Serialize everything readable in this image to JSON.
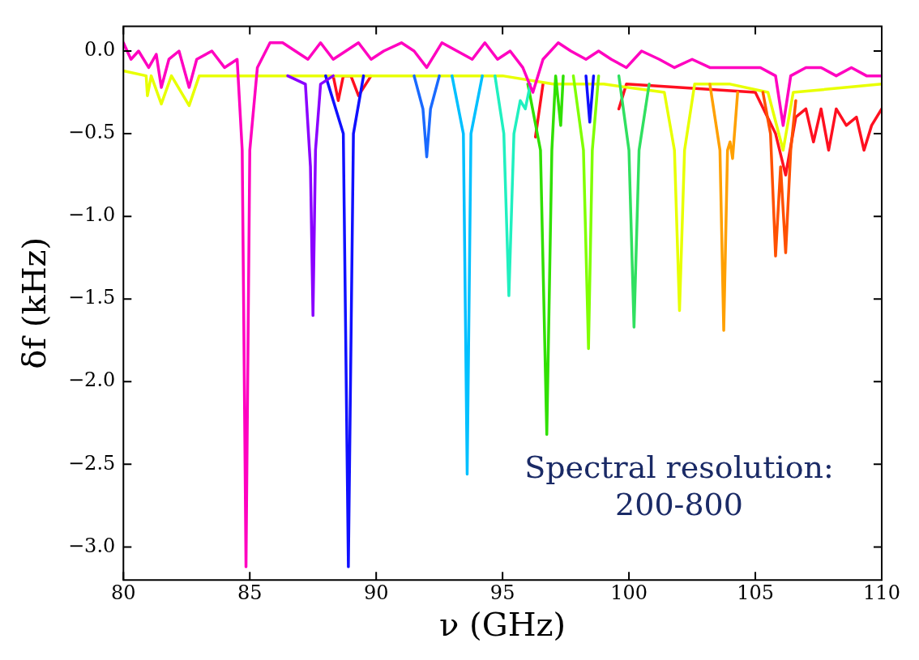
{
  "chart_data": {
    "type": "line",
    "xlabel": "ν (GHz)",
    "ylabel": "δf (kHz)",
    "xlim": [
      80,
      110
    ],
    "ylim": [
      -3.2,
      0.15
    ],
    "xticks": [
      80,
      85,
      90,
      95,
      100,
      105,
      110
    ],
    "yticks": [
      {
        "value": 0,
        "label": "0.0"
      },
      {
        "value": -0.5,
        "label": "−0.5"
      },
      {
        "value": -1,
        "label": "−1.0"
      },
      {
        "value": -1.5,
        "label": "−1.5"
      },
      {
        "value": -2,
        "label": "−2.0"
      },
      {
        "value": -2.5,
        "label": "−2.5"
      },
      {
        "value": -3,
        "label": "−3.0"
      }
    ],
    "grid": false,
    "legend": false,
    "marker": "none",
    "line_style": "solid",
    "annotations": [
      "Spectral resolution:\n200-800"
    ],
    "series": [
      {
        "color": "#ff1020",
        "x": [
          88.3,
          88.5,
          88.7,
          89.0,
          89.3,
          89.8,
          95.5,
          96.3,
          96.6,
          99.3,
          99.6,
          99.9,
          105,
          105.8,
          106.2,
          106.6,
          107,
          107.3,
          107.6,
          107.9,
          108.2,
          108.6,
          109.0,
          109.3,
          109.6,
          110
        ],
        "values": [
          -0.15,
          -0.3,
          -0.15,
          -0.15,
          -0.27,
          -0.15,
          null,
          -0.52,
          -0.2,
          null,
          -0.35,
          -0.2,
          -0.25,
          -0.5,
          -0.75,
          -0.4,
          -0.35,
          -0.55,
          -0.35,
          -0.6,
          -0.35,
          -0.45,
          -0.4,
          -0.6,
          -0.45,
          -0.35
        ]
      },
      {
        "color": "#e8ff00",
        "x": [
          80,
          80.9,
          80.95,
          81.1,
          81.5,
          81.9,
          82.6,
          83,
          84,
          85,
          90,
          95,
          97,
          99,
          101.4,
          101.8,
          102.0,
          102.2,
          102.6,
          104,
          105.5,
          106.1,
          106.5,
          110
        ],
        "values": [
          -0.12,
          -0.15,
          -0.27,
          -0.15,
          -0.32,
          -0.15,
          -0.33,
          -0.15,
          -0.15,
          -0.15,
          -0.15,
          -0.15,
          -0.2,
          -0.2,
          -0.25,
          -0.6,
          -1.57,
          -0.6,
          -0.2,
          -0.2,
          -0.25,
          -0.6,
          -0.25,
          -0.2
        ]
      },
      {
        "color": "#ff5000",
        "x": [
          105.3,
          105.6,
          105.8,
          106.0,
          106.2,
          106.4,
          106.6
        ],
        "values": [
          -0.25,
          -0.5,
          -1.24,
          -0.7,
          -1.22,
          -0.6,
          -0.3
        ]
      },
      {
        "color": "#ffa000",
        "x": [
          103.2,
          103.6,
          103.75,
          103.9,
          104.0,
          104.1,
          104.3
        ],
        "values": [
          -0.2,
          -0.6,
          -1.69,
          -0.6,
          -0.55,
          -0.65,
          -0.25
        ]
      },
      {
        "color": "#30e060",
        "x": [
          99.6,
          100.0,
          100.2,
          100.4,
          100.8
        ],
        "values": [
          -0.15,
          -0.6,
          -1.67,
          -0.6,
          -0.2
        ]
      },
      {
        "color": "#80ff00",
        "x": [
          97.8,
          98.2,
          98.4,
          98.55,
          98.8
        ],
        "values": [
          -0.15,
          -0.6,
          -1.8,
          -0.6,
          -0.15
        ]
      },
      {
        "color": "#30e000",
        "x": [
          96.0,
          96.5,
          96.75,
          96.95,
          97.1,
          97.3,
          97.4
        ],
        "values": [
          -0.2,
          -0.6,
          -2.32,
          -0.6,
          -0.15,
          -0.45,
          -0.15
        ]
      },
      {
        "color": "#20f0c0",
        "x": [
          94.7,
          95.05,
          95.25,
          95.45,
          95.7,
          95.9,
          96.1
        ],
        "values": [
          -0.15,
          -0.5,
          -1.48,
          -0.5,
          -0.3,
          -0.35,
          -0.2
        ]
      },
      {
        "color": "#00c0ff",
        "x": [
          93.0,
          93.45,
          93.6,
          93.75,
          94.2
        ],
        "values": [
          -0.15,
          -0.5,
          -2.56,
          -0.5,
          -0.15
        ]
      },
      {
        "color": "#1a6aff",
        "x": [
          91.5,
          91.85,
          92.0,
          92.15,
          92.5
        ],
        "values": [
          -0.15,
          -0.35,
          -0.64,
          -0.35,
          -0.15
        ]
      },
      {
        "color": "#1010ff",
        "x": [
          88.0,
          88.7,
          88.9,
          89.1,
          89.5,
          93,
          98.3,
          98.45,
          98.6
        ],
        "values": [
          -0.15,
          -0.5,
          -3.12,
          -0.5,
          -0.15,
          null,
          -0.15,
          -0.43,
          -0.15
        ]
      },
      {
        "color": "#8a00ff",
        "x": [
          86.5,
          87.2,
          87.4,
          87.5,
          87.6,
          87.8,
          88.3
        ],
        "values": [
          -0.15,
          -0.2,
          -0.7,
          -1.6,
          -0.6,
          -0.2,
          -0.15
        ]
      },
      {
        "color": "#ff00c0",
        "x": [
          80,
          80.3,
          80.6,
          81,
          81.3,
          81.5,
          81.8,
          82.2,
          82.6,
          82.9,
          83.5,
          84.0,
          84.5,
          84.7,
          84.85,
          85.0,
          85.3,
          85.8,
          86.3,
          86.8,
          87.3,
          87.8,
          88.3,
          88.8,
          89.3,
          89.8,
          90.3,
          91,
          91.5,
          92.0,
          92.6,
          93.2,
          93.8,
          94.3,
          94.8,
          95.3,
          95.8,
          96.2,
          96.6,
          97.2,
          97.7,
          98.3,
          98.8,
          99.3,
          99.9,
          100.5,
          101.2,
          101.8,
          102.5,
          103.2,
          103.8,
          104.5,
          105.2,
          105.8,
          106.1,
          106.4,
          107,
          107.6,
          108.2,
          108.8,
          109.4,
          110
        ],
        "values": [
          0.05,
          -0.05,
          0.0,
          -0.1,
          -0.02,
          -0.22,
          -0.05,
          0.0,
          -0.22,
          -0.05,
          0.0,
          -0.1,
          -0.05,
          -0.6,
          -3.12,
          -0.6,
          -0.1,
          0.05,
          0.05,
          0.0,
          -0.05,
          0.05,
          -0.05,
          0.0,
          0.05,
          -0.05,
          0.0,
          0.05,
          0.0,
          -0.1,
          0.05,
          0.0,
          -0.05,
          0.05,
          -0.05,
          0.0,
          -0.1,
          -0.25,
          -0.05,
          0.05,
          0.0,
          -0.05,
          0.0,
          -0.05,
          -0.1,
          0.0,
          -0.05,
          -0.1,
          -0.05,
          -0.1,
          -0.1,
          -0.1,
          -0.1,
          -0.15,
          -0.45,
          -0.15,
          -0.1,
          -0.1,
          -0.15,
          -0.1,
          -0.15,
          -0.15
        ]
      }
    ]
  }
}
